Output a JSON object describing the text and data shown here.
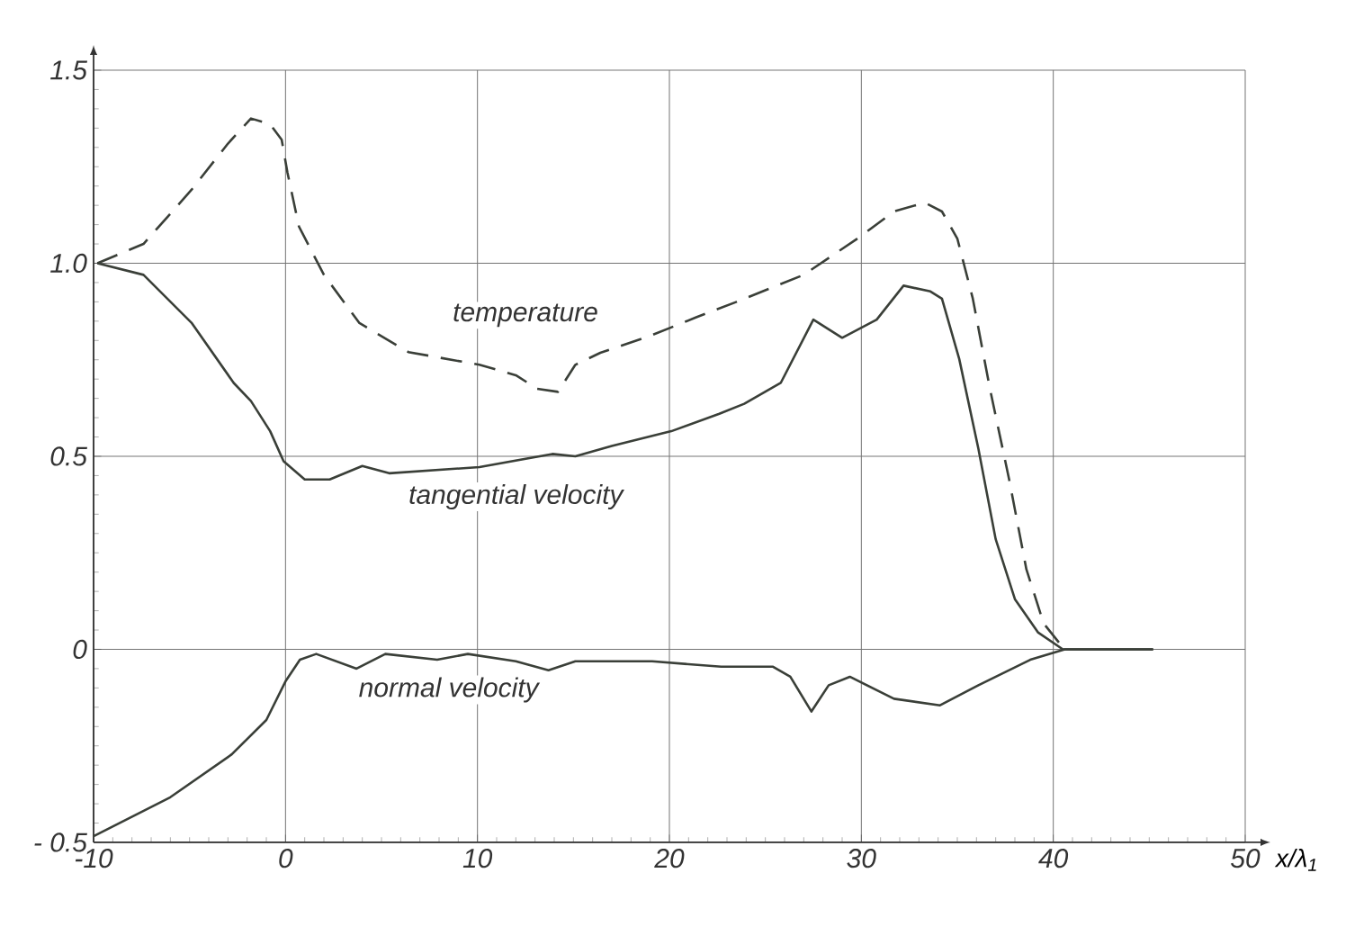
{
  "chart_data": {
    "type": "line",
    "xlabel": "x/λ$_{1}$",
    "xlim": [
      -10,
      50
    ],
    "ylim": [
      -0.5,
      1.5
    ],
    "xticks": [
      -10,
      0,
      10,
      20,
      30,
      40,
      50
    ],
    "yticks": [
      {
        "value": -0.5,
        "label": "- 0.5"
      },
      0,
      {
        "value": 0.5,
        "label": "0.5"
      },
      {
        "value": 1.0,
        "label": "1.0"
      },
      {
        "value": 1.5,
        "label": "1.5"
      }
    ],
    "grid": true,
    "marker": "none",
    "series": [
      {
        "color": "#3a3f38",
        "line_style": "dashed",
        "x": [
          -9.8,
          -7.4,
          -4.9,
          -3.0,
          -1.8,
          -0.8,
          -0.2,
          0.1,
          0.7,
          2.0,
          3.85,
          6.4,
          10.1,
          12.0,
          13.1,
          14.2,
          15.1,
          16.4,
          18.9,
          21.4,
          23.5,
          27.0,
          29.8,
          31.7,
          33.3,
          34.2,
          35.0,
          35.8,
          36.7,
          37.7,
          38.6,
          39.5,
          40.5
        ],
        "values": [
          1.0,
          1.05,
          1.19,
          1.31,
          1.375,
          1.36,
          1.32,
          1.235,
          1.095,
          0.97,
          0.845,
          0.77,
          0.737,
          0.71,
          0.675,
          0.667,
          0.737,
          0.768,
          0.81,
          0.86,
          0.9,
          0.97,
          1.064,
          1.134,
          1.157,
          1.134,
          1.064,
          0.91,
          0.675,
          0.44,
          0.207,
          0.067,
          0.005
        ]
      },
      {
        "color": "#3a3f38",
        "line_style": "solid",
        "x": [
          -9.8,
          -7.4,
          -4.9,
          -2.7,
          -1.8,
          -0.8,
          -0.1,
          1.0,
          2.3,
          4.0,
          5.4,
          10.1,
          13.9,
          15.1,
          17.0,
          20.1,
          22.6,
          23.9,
          25.8,
          27.5,
          29.0,
          30.8,
          32.2,
          33.6,
          34.2,
          35.1,
          36.1,
          37.0,
          38.0,
          39.2,
          40.5,
          45.2
        ],
        "values": [
          1.0,
          0.97,
          0.846,
          0.69,
          0.643,
          0.565,
          0.487,
          0.44,
          0.44,
          0.475,
          0.456,
          0.472,
          0.506,
          0.5,
          0.527,
          0.565,
          0.61,
          0.636,
          0.69,
          0.854,
          0.807,
          0.854,
          0.942,
          0.927,
          0.908,
          0.752,
          0.519,
          0.285,
          0.13,
          0.044,
          0.0,
          0.0
        ]
      },
      {
        "color": "#3a3f38",
        "line_style": "solid",
        "x": [
          -10,
          -6.0,
          -2.8,
          -1.0,
          0,
          0.75,
          1.6,
          3.7,
          5.2,
          7.9,
          9.5,
          12.0,
          13.7,
          15.1,
          19.1,
          22.7,
          25.4,
          26.3,
          27.4,
          28.3,
          29.4,
          31.7,
          34.1,
          36.1,
          38.8,
          40.6,
          45.2
        ],
        "values": [
          -0.484,
          -0.383,
          -0.272,
          -0.183,
          -0.083,
          -0.027,
          -0.012,
          -0.05,
          -0.012,
          -0.027,
          -0.012,
          -0.031,
          -0.054,
          -0.031,
          -0.031,
          -0.045,
          -0.045,
          -0.071,
          -0.161,
          -0.093,
          -0.071,
          -0.128,
          -0.145,
          -0.093,
          -0.027,
          0.0,
          0.0
        ]
      }
    ],
    "annotations": [
      "temperature",
      "tangential velocity",
      "normal velocity"
    ]
  }
}
